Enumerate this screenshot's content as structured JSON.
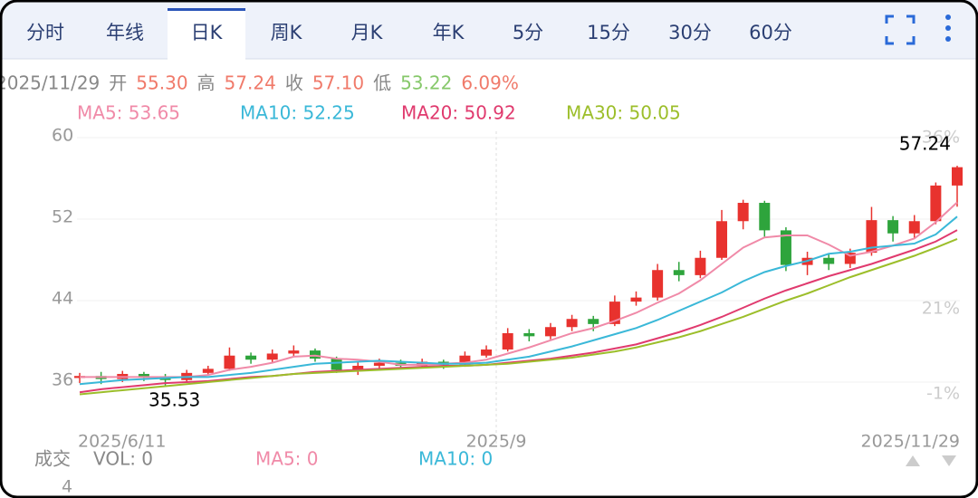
{
  "tabs": [
    "分时",
    "年线",
    "日K",
    "周K",
    "月K",
    "年K",
    "5分",
    "15分",
    "30分",
    "60分"
  ],
  "selected_tab": "日K",
  "info": {
    "date": "2025/11/29",
    "items": [
      {
        "label": "开",
        "value": "55.30"
      },
      {
        "label": "高",
        "value": "57.24"
      },
      {
        "label": "收",
        "value": "57.10"
      },
      {
        "label": "低",
        "value": "53.22"
      }
    ],
    "change": "6.09%"
  },
  "chart_data": {
    "type": "candlestick",
    "ylim": [
      31.73,
      61.07
    ],
    "yticks": [
      36,
      44,
      52,
      60
    ],
    "right_labels": [
      "36%",
      "21%",
      "-1%"
    ],
    "x_labels": [
      "2025/6/11",
      "2025/9",
      "2025/11/29"
    ],
    "up_color": "#e8322e",
    "down_color": "#2ea43c",
    "candles": [
      [
        36.4,
        36.6,
        36.9,
        35.9
      ],
      [
        36.6,
        36.3,
        37.0,
        35.8
      ],
      [
        36.3,
        36.8,
        37.1,
        36.0
      ],
      [
        36.8,
        36.5,
        37.0,
        36.1
      ],
      [
        36.5,
        36.2,
        36.8,
        35.53
      ],
      [
        36.2,
        36.9,
        37.2,
        36.0
      ],
      [
        36.9,
        37.3,
        37.6,
        36.7
      ],
      [
        37.3,
        38.6,
        39.4,
        37.1
      ],
      [
        38.6,
        38.2,
        38.9,
        37.8
      ],
      [
        38.2,
        38.8,
        39.2,
        37.9
      ],
      [
        38.8,
        39.1,
        39.6,
        38.5
      ],
      [
        39.1,
        38.3,
        39.3,
        38.0
      ],
      [
        38.3,
        37.2,
        38.5,
        36.9
      ],
      [
        37.2,
        37.6,
        38.0,
        36.7
      ],
      [
        37.6,
        37.9,
        38.3,
        37.3
      ],
      [
        37.9,
        37.6,
        38.2,
        37.3
      ],
      [
        37.6,
        38.0,
        38.3,
        37.4
      ],
      [
        38.0,
        37.7,
        38.2,
        37.3
      ],
      [
        37.7,
        38.6,
        39.0,
        37.5
      ],
      [
        38.6,
        39.2,
        39.6,
        38.4
      ],
      [
        39.2,
        40.8,
        41.3,
        39.0
      ],
      [
        40.8,
        40.5,
        41.2,
        40.0
      ],
      [
        40.5,
        41.4,
        41.8,
        40.2
      ],
      [
        41.4,
        42.2,
        42.6,
        41.0
      ],
      [
        42.2,
        41.7,
        42.5,
        41.0
      ],
      [
        41.7,
        43.9,
        44.5,
        41.5
      ],
      [
        43.9,
        44.3,
        44.9,
        43.5
      ],
      [
        44.3,
        47.0,
        47.6,
        44.0
      ],
      [
        47.0,
        46.5,
        47.8,
        45.9
      ],
      [
        46.5,
        48.2,
        48.9,
        46.2
      ],
      [
        48.2,
        51.8,
        52.9,
        48.0
      ],
      [
        51.8,
        53.6,
        53.9,
        51.0
      ],
      [
        53.6,
        50.9,
        53.8,
        50.2
      ],
      [
        50.9,
        47.5,
        51.2,
        46.9
      ],
      [
        47.5,
        48.2,
        48.8,
        46.5
      ],
      [
        48.2,
        47.6,
        48.6,
        47.0
      ],
      [
        47.6,
        48.7,
        49.1,
        47.2
      ],
      [
        48.7,
        51.9,
        53.2,
        48.4
      ],
      [
        51.9,
        50.6,
        52.3,
        49.8
      ],
      [
        50.6,
        51.8,
        52.4,
        50.1
      ],
      [
        51.8,
        55.3,
        55.6,
        51.5
      ],
      [
        55.3,
        57.1,
        57.24,
        53.22
      ]
    ],
    "series": [
      {
        "name": "MA5: 53.65",
        "color": "#f08aa8",
        "values": [
          36.5,
          36.5,
          36.5,
          36.5,
          36.5,
          36.5,
          36.7,
          37.2,
          37.5,
          37.9,
          38.5,
          38.6,
          38.3,
          38.2,
          38.0,
          37.7,
          37.7,
          37.8,
          37.9,
          38.2,
          38.8,
          39.4,
          40.1,
          40.8,
          41.3,
          42.0,
          42.8,
          43.8,
          44.7,
          46.0,
          47.6,
          49.2,
          50.2,
          50.4,
          50.4,
          49.5,
          48.4,
          48.8,
          49.4,
          50.1,
          51.7,
          53.65
        ]
      },
      {
        "name": "MA10: 52.25",
        "color": "#3ab8d8",
        "values": [
          35.8,
          36.0,
          36.2,
          36.3,
          36.4,
          36.5,
          36.5,
          36.7,
          36.9,
          37.2,
          37.5,
          37.8,
          37.9,
          38.0,
          38.1,
          38.0,
          37.9,
          37.8,
          37.8,
          37.9,
          38.2,
          38.5,
          39.0,
          39.5,
          40.1,
          40.7,
          41.3,
          42.1,
          43.0,
          43.9,
          44.8,
          45.9,
          46.8,
          47.4,
          47.9,
          48.6,
          48.8,
          49.2,
          49.4,
          49.6,
          50.5,
          52.25
        ]
      },
      {
        "name": "MA20: 50.92",
        "color": "#e03a6e",
        "values": [
          35.0,
          35.3,
          35.5,
          35.7,
          35.9,
          36.0,
          36.1,
          36.3,
          36.5,
          36.6,
          36.8,
          37.0,
          37.1,
          37.2,
          37.3,
          37.4,
          37.5,
          37.6,
          37.6,
          37.7,
          37.9,
          38.1,
          38.3,
          38.6,
          38.9,
          39.3,
          39.7,
          40.3,
          40.9,
          41.6,
          42.4,
          43.3,
          44.2,
          45.0,
          45.7,
          46.4,
          47.0,
          47.6,
          48.3,
          49.0,
          49.8,
          50.92
        ]
      },
      {
        "name": "MA30: 50.05",
        "color": "#9cbe2a",
        "values": [
          34.8,
          35.0,
          35.2,
          35.4,
          35.6,
          35.8,
          36.0,
          36.2,
          36.4,
          36.6,
          36.8,
          36.9,
          37.0,
          37.1,
          37.2,
          37.3,
          37.4,
          37.5,
          37.6,
          37.7,
          37.8,
          38.0,
          38.2,
          38.4,
          38.7,
          39.0,
          39.4,
          39.9,
          40.4,
          41.0,
          41.7,
          42.4,
          43.2,
          44.0,
          44.7,
          45.5,
          46.3,
          47.0,
          47.7,
          48.4,
          49.2,
          50.05
        ]
      }
    ],
    "max_label": "57.24",
    "min_label": "35.53"
  },
  "volume": {
    "title": "成交",
    "vol": "VOL: 0",
    "ma5": "MA5: 0",
    "ma10": "MA10: 0",
    "axis_label": "4"
  }
}
